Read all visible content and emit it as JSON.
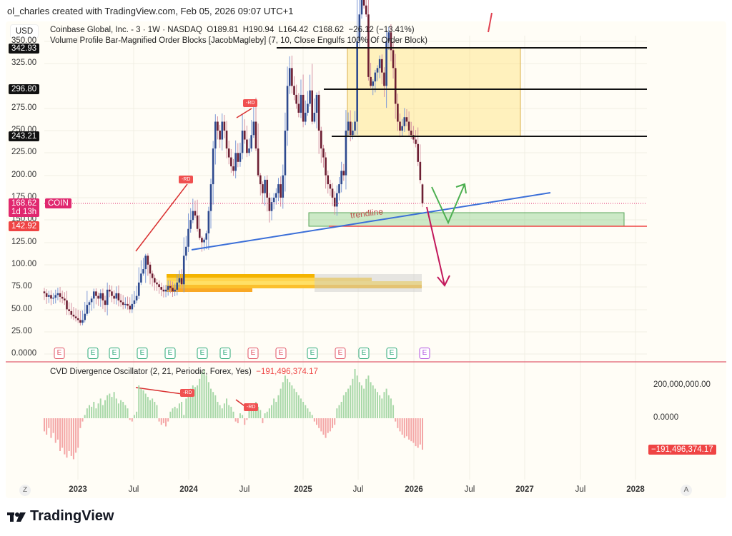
{
  "header": {
    "credit": "ol_charles created with TradingView.com, Feb 05, 2026 09:07 UTC+1"
  },
  "legend": {
    "currency": "USD",
    "symbol_line": "Coinbase Global, Inc. - 3 · 1W · NASDAQ",
    "open": "O189.81",
    "high": "H190.94",
    "low": "L164.42",
    "close": "C168.62",
    "change": "−26.12 (−13.41%)",
    "indicator": "Volume Profile Bar-Magnified Order Blocks [JacobMagleby] (7, 10, Close Engulfs 100% Of Order Block)"
  },
  "price_axis": {
    "ticks": [
      "350.00",
      "325.00",
      "275.00",
      "250.00",
      "225.00",
      "200.00",
      "175.00",
      "150.00",
      "125.00",
      "100.00",
      "75.00",
      "50.00",
      "25.00",
      "0.0000"
    ],
    "levels": {
      "l1": "342.93",
      "l2": "296.80",
      "l3": "243.21",
      "last": "168.62",
      "countdown": "1d 13h",
      "symbol": "COIN",
      "support": "142.92"
    }
  },
  "time_axis": {
    "z": "Z",
    "labels": [
      "2023",
      "Jul",
      "2024",
      "Jul",
      "2025",
      "Jul",
      "2026",
      "Jul",
      "2027",
      "Jul",
      "2028"
    ],
    "a": "A"
  },
  "drawings": {
    "trendline_label": "trendline",
    "rd": "-RD"
  },
  "oscillator": {
    "title": "CVD Divergence Oscillator (2, 21, Periodic, Forex, Yes)",
    "value": "−191,496,374.17",
    "ticks": [
      "200,000,000.00",
      "0.0000"
    ],
    "value_label": "−191,496,374.17"
  },
  "earnings": [
    "E",
    "E",
    "E",
    "E",
    "E",
    "E",
    "E",
    "E",
    "E",
    "E",
    "E",
    "E",
    "E",
    "E"
  ],
  "logo": "TradingView",
  "colors": {
    "up": "#2e4a8f",
    "down": "#6d1f33",
    "osc_pos": "#a8d8a8",
    "osc_neg": "#f4a6a6",
    "last_price": "#e0286f",
    "support": "#ef4444",
    "trend": "#3b6fd8"
  },
  "chart_data": {
    "type": "candlestick",
    "title": "Coinbase Global, Inc. 1W",
    "x_range": [
      "2022-09",
      "2026-02"
    ],
    "ylim": [
      0,
      350
    ],
    "grid": true,
    "last_candle": {
      "open": 189.81,
      "high": 190.94,
      "low": 164.42,
      "close": 168.62
    },
    "weekly_closes": [
      68,
      64,
      66,
      62,
      63,
      66,
      68,
      64,
      62,
      60,
      50,
      48,
      44,
      42,
      40,
      38,
      35,
      38,
      45,
      55,
      58,
      62,
      70,
      65,
      62,
      68,
      60,
      55,
      72,
      70,
      65,
      62,
      68,
      60,
      58,
      55,
      56,
      54,
      50,
      56,
      60,
      65,
      80,
      90,
      95,
      110,
      100,
      90,
      85,
      80,
      78,
      75,
      72,
      70,
      72,
      76,
      74,
      70,
      72,
      80,
      85,
      78,
      110,
      120,
      140,
      150,
      160,
      155,
      140,
      130,
      125,
      128,
      135,
      160,
      190,
      230,
      260,
      250,
      240,
      260,
      250,
      230,
      220,
      210,
      205,
      225,
      215,
      225,
      250,
      240,
      225,
      230,
      245,
      260,
      230,
      200,
      190,
      180,
      195,
      175,
      160,
      170,
      175,
      180,
      190,
      175,
      200,
      250,
      300,
      320,
      300,
      290,
      280,
      270,
      290,
      260,
      270,
      280,
      295,
      260,
      270,
      290,
      250,
      230,
      220,
      200,
      190,
      185,
      175,
      165,
      180,
      190,
      205,
      200,
      250,
      260,
      245,
      250,
      260,
      350,
      380,
      400,
      390,
      380,
      310,
      300,
      305,
      315,
      320,
      330,
      315,
      300,
      350,
      360,
      340,
      320,
      280,
      260,
      250,
      255,
      265,
      260,
      250,
      245,
      240,
      235,
      215,
      194.74,
      168.62
    ],
    "oscillator_values_millions": [
      -80,
      -100,
      -60,
      -120,
      -90,
      -150,
      -130,
      -200,
      -180,
      -220,
      -240,
      -200,
      -230,
      -250,
      -210,
      -180,
      -60,
      -20,
      20,
      60,
      80,
      70,
      100,
      60,
      90,
      120,
      80,
      110,
      140,
      150,
      130,
      160,
      120,
      90,
      110,
      100,
      80,
      60,
      -10,
      -20,
      20,
      40,
      200,
      180,
      170,
      150,
      130,
      110,
      120,
      100,
      80,
      -20,
      -40,
      -30,
      -50,
      -20,
      40,
      60,
      70,
      60,
      90,
      100,
      20,
      120,
      150,
      180,
      200,
      190,
      200,
      240,
      280,
      300,
      260,
      220,
      180,
      160,
      140,
      100,
      80,
      60,
      90,
      120,
      80,
      70,
      40,
      -20,
      -30,
      30,
      20,
      -40,
      -10,
      60,
      90,
      80,
      100,
      70,
      50,
      -30,
      30,
      40,
      60,
      80,
      120,
      100,
      140,
      180,
      220,
      260,
      240,
      220,
      200,
      180,
      160,
      140,
      120,
      100,
      80,
      60,
      40,
      20,
      -20,
      -40,
      -60,
      -80,
      -100,
      -120,
      -90,
      -80,
      -60,
      -40,
      60,
      80,
      100,
      140,
      160,
      180,
      200,
      240,
      300,
      260,
      220,
      200,
      180,
      240,
      260,
      220,
      200,
      180,
      160,
      140,
      120,
      160,
      180,
      140,
      120,
      80,
      -20,
      -60,
      -80,
      -100,
      -120,
      -110,
      -130,
      -140,
      -150,
      -170,
      -180,
      -160,
      -191.5
    ],
    "horizontal_levels": [
      342.93,
      296.8,
      243.21,
      142.92
    ]
  }
}
